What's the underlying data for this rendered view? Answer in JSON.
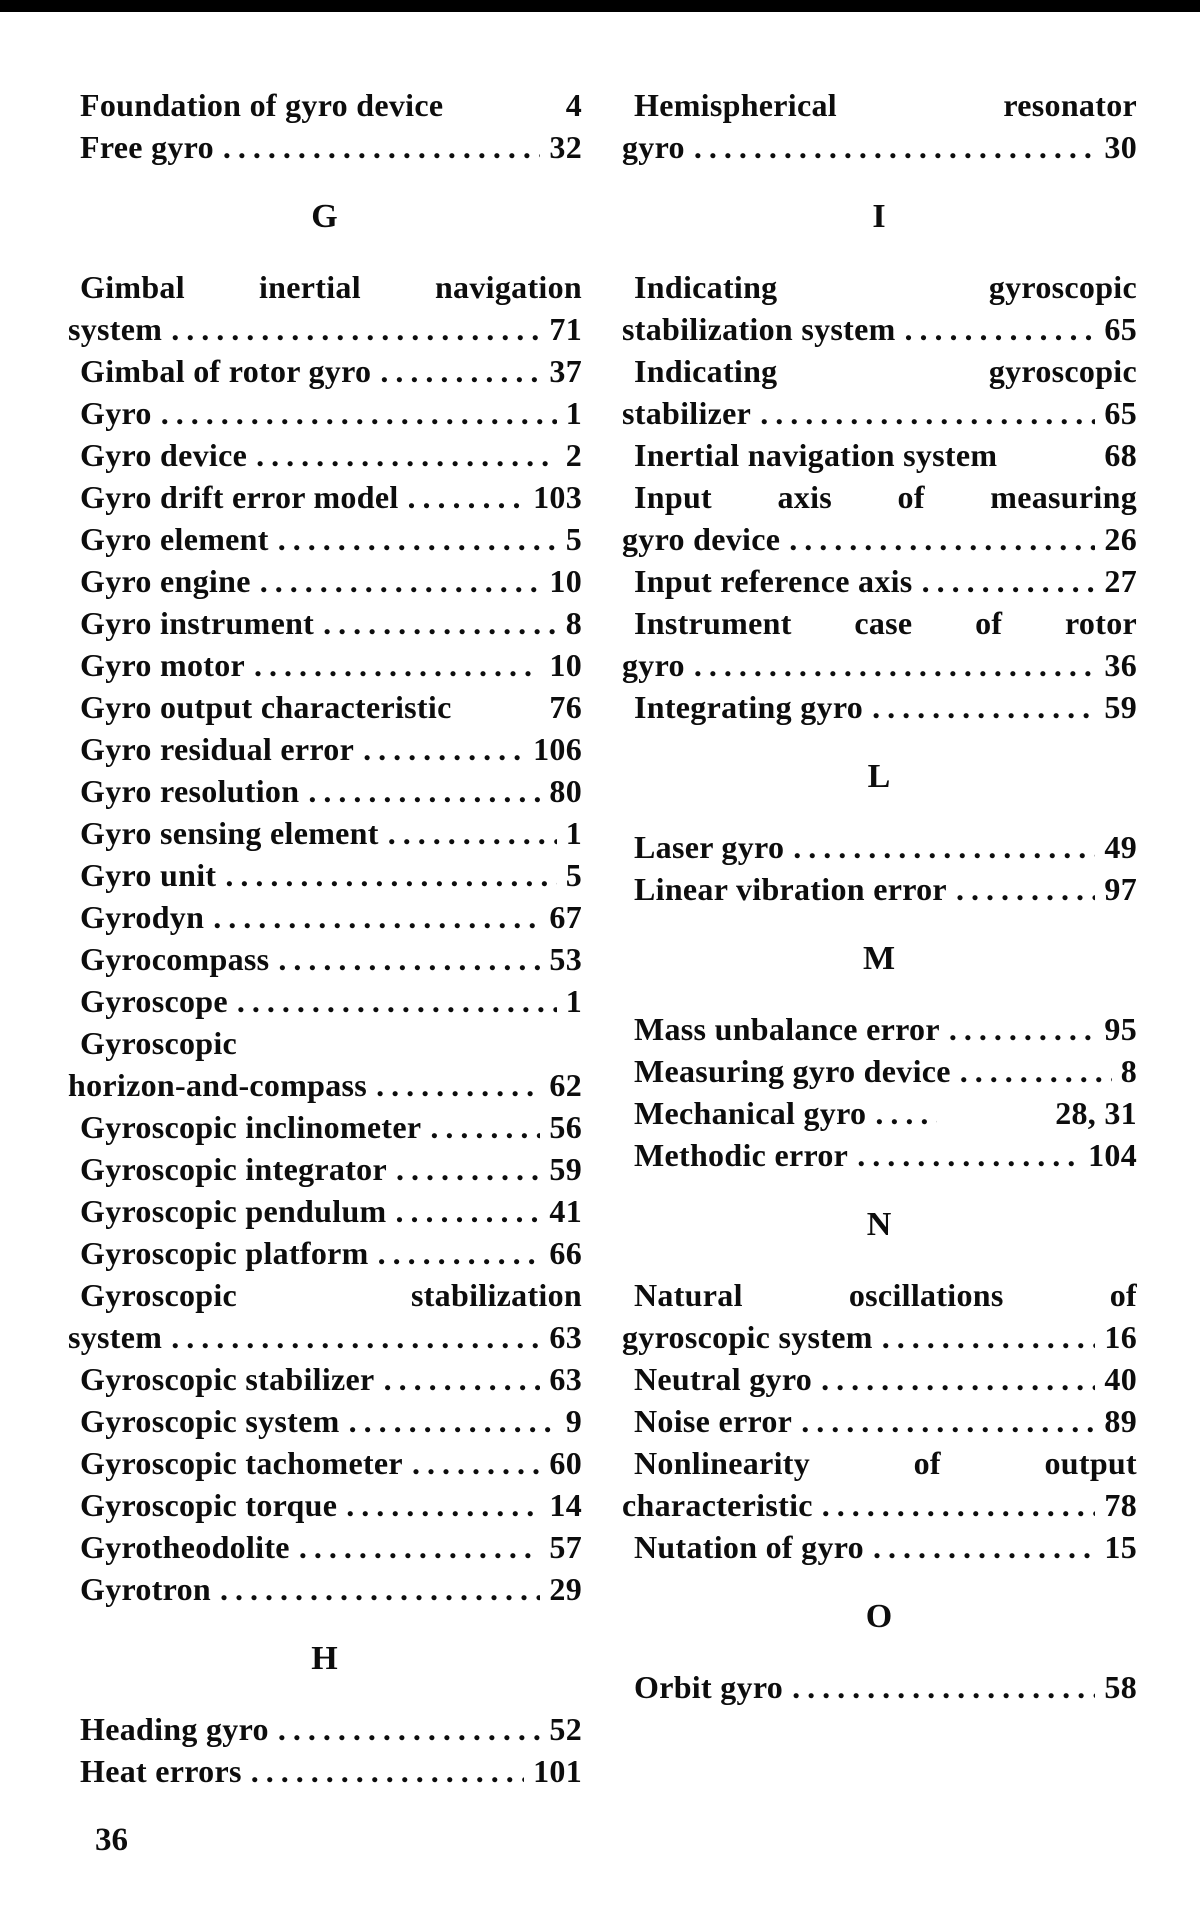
{
  "page": {
    "paper_color": "#ffffff",
    "ink_color": "#0d0d0d",
    "scan_edge_color": "#000000",
    "folio": "36",
    "columns": [
      {
        "name": "left",
        "blocks": [
          {
            "type": "entries",
            "items": [
              {
                "lines": [
                  {
                    "text": "Foundation of gyro device",
                    "page": "4",
                    "leader": "none",
                    "indent": true
                  }
                ]
              },
              {
                "lines": [
                  {
                    "text": "Free gyro",
                    "page": "32",
                    "leader": "dots",
                    "indent": true
                  }
                ]
              }
            ]
          },
          {
            "type": "header",
            "text": "G"
          },
          {
            "type": "entries",
            "items": [
              {
                "lines": [
                  {
                    "text": "Gimbal inertial navigation",
                    "justify": true,
                    "indent": true
                  },
                  {
                    "text": "system",
                    "page": "71",
                    "leader": "dots"
                  }
                ]
              },
              {
                "lines": [
                  {
                    "text": "Gimbal of rotor gyro",
                    "page": "37",
                    "leader": "dots",
                    "indent": true
                  }
                ]
              },
              {
                "lines": [
                  {
                    "text": "Gyro",
                    "page": "1",
                    "leader": "dots",
                    "indent": true
                  }
                ]
              },
              {
                "lines": [
                  {
                    "text": "Gyro device",
                    "page": "2",
                    "leader": "dots",
                    "indent": true
                  }
                ]
              },
              {
                "lines": [
                  {
                    "text": "Gyro drift error model",
                    "page": "103",
                    "leader": "dots",
                    "indent": true
                  }
                ]
              },
              {
                "lines": [
                  {
                    "text": "Gyro element",
                    "page": "5",
                    "leader": "dots",
                    "indent": true
                  }
                ]
              },
              {
                "lines": [
                  {
                    "text": "Gyro engine",
                    "page": "10",
                    "leader": "dots",
                    "indent": true
                  }
                ]
              },
              {
                "lines": [
                  {
                    "text": "Gyro instrument",
                    "page": "8",
                    "leader": "dots",
                    "indent": true
                  }
                ]
              },
              {
                "lines": [
                  {
                    "text": "Gyro motor",
                    "page": "10",
                    "leader": "dots",
                    "indent": true
                  }
                ]
              },
              {
                "lines": [
                  {
                    "text": "Gyro output characteristic",
                    "page": "76",
                    "leader": "none",
                    "indent": true
                  }
                ]
              },
              {
                "lines": [
                  {
                    "text": "Gyro residual error",
                    "page": "106",
                    "leader": "dots",
                    "indent": true
                  }
                ]
              },
              {
                "lines": [
                  {
                    "text": "Gyro resolution",
                    "page": "80",
                    "leader": "dots",
                    "indent": true
                  }
                ]
              },
              {
                "lines": [
                  {
                    "text": "Gyro sensing element",
                    "page": "1",
                    "leader": "dots",
                    "indent": true
                  }
                ]
              },
              {
                "lines": [
                  {
                    "text": "Gyro unit",
                    "page": "5",
                    "leader": "dots",
                    "indent": true
                  }
                ]
              },
              {
                "lines": [
                  {
                    "text": "Gyrodyn",
                    "page": "67",
                    "leader": "dots",
                    "indent": true
                  }
                ]
              },
              {
                "lines": [
                  {
                    "text": "Gyrocompass",
                    "page": "53",
                    "leader": "dots",
                    "indent": true
                  }
                ]
              },
              {
                "lines": [
                  {
                    "text": "Gyroscope",
                    "page": "1",
                    "leader": "dots",
                    "indent": true
                  }
                ]
              },
              {
                "lines": [
                  {
                    "text": "Gyroscopic",
                    "indent": true
                  },
                  {
                    "text": "horizon-and-compass",
                    "page": "62",
                    "leader": "dots"
                  }
                ]
              },
              {
                "lines": [
                  {
                    "text": "Gyroscopic inclinometer",
                    "page": "56",
                    "leader": "dots",
                    "indent": true
                  }
                ]
              },
              {
                "lines": [
                  {
                    "text": "Gyroscopic integrator",
                    "page": "59",
                    "leader": "dots",
                    "indent": true
                  }
                ]
              },
              {
                "lines": [
                  {
                    "text": "Gyroscopic pendulum",
                    "page": "41",
                    "leader": "dots",
                    "indent": true
                  }
                ]
              },
              {
                "lines": [
                  {
                    "text": "Gyroscopic platform",
                    "page": "66",
                    "leader": "dots",
                    "indent": true
                  }
                ]
              },
              {
                "lines": [
                  {
                    "text": "Gyroscopic stabilization",
                    "justify": true,
                    "indent": true
                  },
                  {
                    "text": "system",
                    "page": "63",
                    "leader": "dots"
                  }
                ]
              },
              {
                "lines": [
                  {
                    "text": "Gyroscopic stabilizer",
                    "page": "63",
                    "leader": "dots",
                    "indent": true
                  }
                ]
              },
              {
                "lines": [
                  {
                    "text": "Gyroscopic system",
                    "page": "9",
                    "leader": "dots",
                    "indent": true
                  }
                ]
              },
              {
                "lines": [
                  {
                    "text": "Gyroscopic tachometer",
                    "page": "60",
                    "leader": "dots",
                    "indent": true
                  }
                ]
              },
              {
                "lines": [
                  {
                    "text": "Gyroscopic torque",
                    "page": "14",
                    "leader": "dots",
                    "indent": true
                  }
                ]
              },
              {
                "lines": [
                  {
                    "text": "Gyrotheodolite",
                    "page": "57",
                    "leader": "dots",
                    "indent": true
                  }
                ]
              },
              {
                "lines": [
                  {
                    "text": "Gyrotron",
                    "page": "29",
                    "leader": "dots",
                    "indent": true
                  }
                ]
              }
            ]
          },
          {
            "type": "header",
            "text": "H"
          },
          {
            "type": "entries",
            "items": [
              {
                "lines": [
                  {
                    "text": "Heading gyro",
                    "page": "52",
                    "leader": "dots",
                    "indent": true
                  }
                ]
              },
              {
                "lines": [
                  {
                    "text": "Heat errors",
                    "page": "101",
                    "leader": "dots",
                    "indent": true
                  }
                ]
              }
            ]
          }
        ]
      },
      {
        "name": "right",
        "blocks": [
          {
            "type": "entries",
            "items": [
              {
                "lines": [
                  {
                    "text": "Hemispherical resonator",
                    "justify": true,
                    "indent": true
                  },
                  {
                    "text": "gyro",
                    "page": "30",
                    "leader": "dots"
                  }
                ]
              }
            ]
          },
          {
            "type": "header",
            "text": "I"
          },
          {
            "type": "entries",
            "items": [
              {
                "lines": [
                  {
                    "text": "Indicating gyroscopic",
                    "justify": true,
                    "indent": true
                  },
                  {
                    "text": "stabilization system",
                    "page": "65",
                    "leader": "dots"
                  }
                ]
              },
              {
                "lines": [
                  {
                    "text": "Indicating gyroscopic",
                    "justify": true,
                    "indent": true
                  },
                  {
                    "text": "stabilizer",
                    "page": "65",
                    "leader": "dots"
                  }
                ]
              },
              {
                "lines": [
                  {
                    "text": "Inertial navigation system",
                    "page": "68",
                    "leader": "none",
                    "indent": true
                  }
                ]
              },
              {
                "lines": [
                  {
                    "text": "Input axis of measuring",
                    "justify": true,
                    "indent": true
                  },
                  {
                    "text": "gyro device",
                    "page": "26",
                    "leader": "dots"
                  }
                ]
              },
              {
                "lines": [
                  {
                    "text": "Input reference axis",
                    "page": "27",
                    "leader": "dots",
                    "indent": true
                  }
                ]
              },
              {
                "lines": [
                  {
                    "text": "Instrument case of rotor",
                    "justify": true,
                    "indent": true
                  },
                  {
                    "text": "gyro",
                    "page": "36",
                    "leader": "dots"
                  }
                ]
              },
              {
                "lines": [
                  {
                    "text": "Integrating gyro",
                    "page": "59",
                    "leader": "dots",
                    "indent": true
                  }
                ]
              }
            ]
          },
          {
            "type": "header",
            "text": "L"
          },
          {
            "type": "entries",
            "items": [
              {
                "lines": [
                  {
                    "text": "Laser gyro",
                    "page": "49",
                    "leader": "dots",
                    "indent": true
                  }
                ]
              },
              {
                "lines": [
                  {
                    "text": "Linear vibration error",
                    "page": "97",
                    "leader": "dots",
                    "indent": true
                  }
                ]
              }
            ]
          },
          {
            "type": "header",
            "text": "M"
          },
          {
            "type": "entries",
            "items": [
              {
                "lines": [
                  {
                    "text": "Mass unbalance error",
                    "page": "95",
                    "leader": "dots",
                    "indent": true
                  }
                ]
              },
              {
                "lines": [
                  {
                    "text": "Measuring gyro device",
                    "page": "8",
                    "leader": "dots",
                    "indent": true
                  }
                ]
              },
              {
                "lines": [
                  {
                    "text": "Mechanical gyro",
                    "page": "28, 31",
                    "leader": "short",
                    "indent": true
                  }
                ]
              },
              {
                "lines": [
                  {
                    "text": "Methodic error",
                    "page": "104",
                    "leader": "dots",
                    "indent": true
                  }
                ]
              }
            ]
          },
          {
            "type": "header",
            "text": "N"
          },
          {
            "type": "entries",
            "items": [
              {
                "lines": [
                  {
                    "text": "Natural oscillations of",
                    "justify": true,
                    "indent": true
                  },
                  {
                    "text": "gyroscopic system",
                    "page": "16",
                    "leader": "dots"
                  }
                ]
              },
              {
                "lines": [
                  {
                    "text": "Neutral gyro",
                    "page": "40",
                    "leader": "dots",
                    "indent": true
                  }
                ]
              },
              {
                "lines": [
                  {
                    "text": "Noise error",
                    "page": "89",
                    "leader": "dots",
                    "indent": true
                  }
                ]
              },
              {
                "lines": [
                  {
                    "text": "Nonlinearity of output",
                    "justify": true,
                    "indent": true
                  },
                  {
                    "text": "characteristic",
                    "page": "78",
                    "leader": "dots"
                  }
                ]
              },
              {
                "lines": [
                  {
                    "text": "Nutation of gyro",
                    "page": "15",
                    "leader": "dots",
                    "indent": true
                  }
                ]
              }
            ]
          },
          {
            "type": "header",
            "text": "O"
          },
          {
            "type": "entries",
            "items": [
              {
                "lines": [
                  {
                    "text": "Orbit gyro",
                    "page": "58",
                    "leader": "dots",
                    "indent": true
                  }
                ]
              }
            ]
          }
        ]
      }
    ]
  }
}
